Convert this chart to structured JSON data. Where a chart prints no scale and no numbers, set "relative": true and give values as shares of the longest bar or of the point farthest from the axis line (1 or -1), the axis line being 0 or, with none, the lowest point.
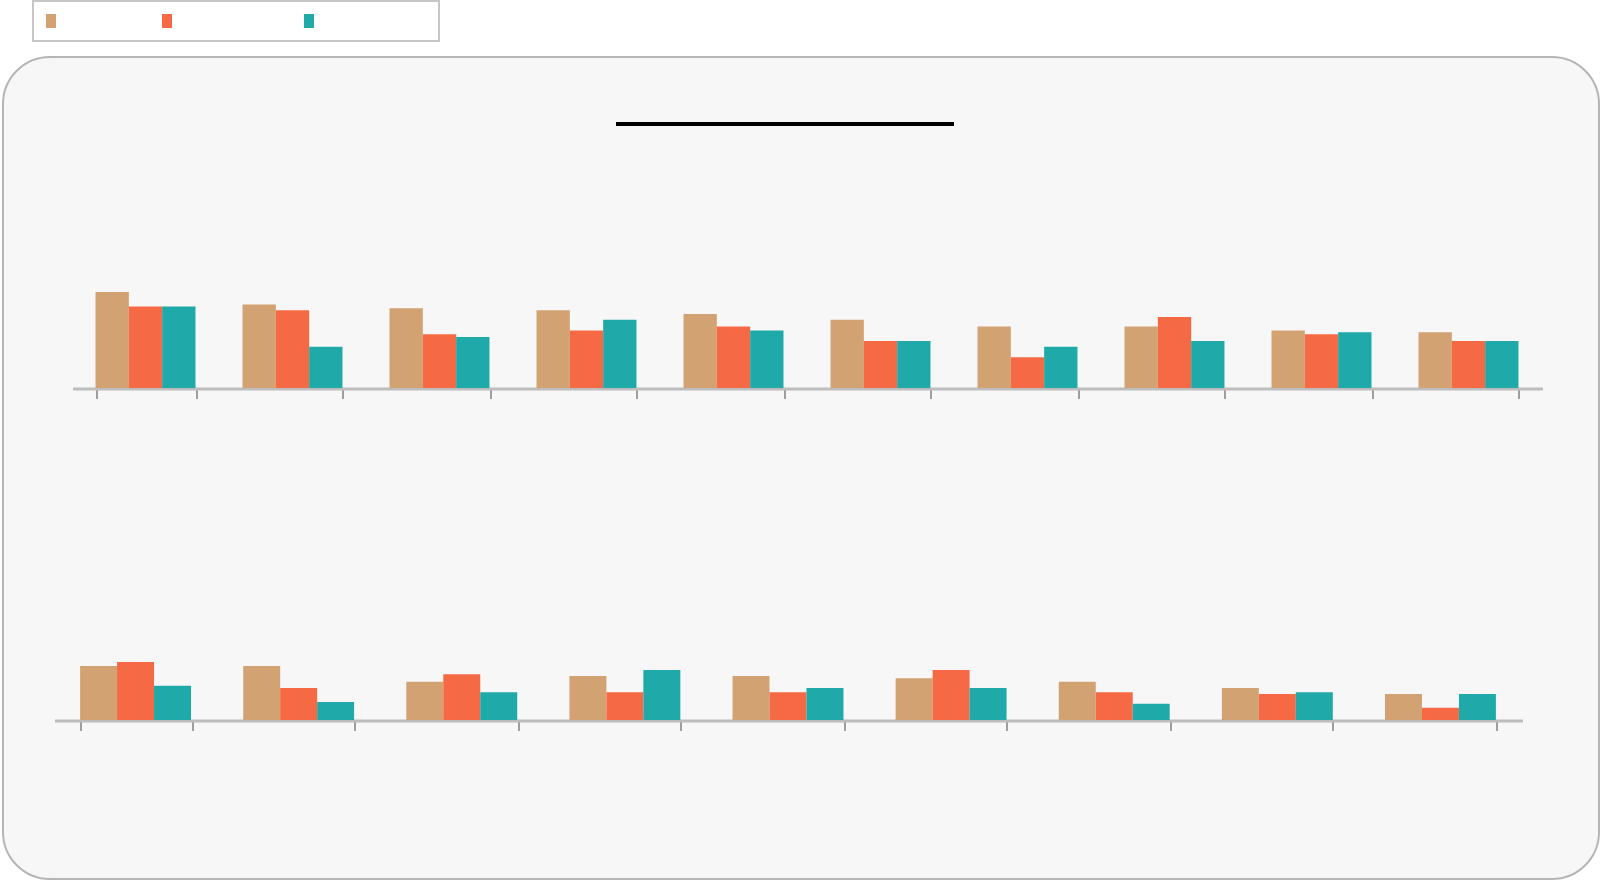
{
  "chart_data": [
    {
      "type": "bar",
      "relative": true,
      "categories": [
        null,
        null,
        null,
        null,
        null,
        null,
        null,
        null,
        null,
        null
      ],
      "series": [
        {
          "color": "#d2a272",
          "values": [
            1,
            0.87,
            0.83,
            0.81,
            0.77,
            0.71,
            0.64,
            0.64,
            0.6,
            0.58
          ]
        },
        {
          "color": "#f56a45",
          "values": [
            0.85,
            0.81,
            0.56,
            0.6,
            0.64,
            0.49,
            0.32,
            0.74,
            0.56,
            0.49
          ]
        },
        {
          "color": "#1fa9a9",
          "values": [
            0.85,
            0.43,
            0.53,
            0.71,
            0.6,
            0.49,
            0.43,
            0.49,
            0.58,
            0.49
          ]
        }
      ]
    },
    {
      "type": "bar",
      "relative": true,
      "categories": [
        null,
        null,
        null,
        null,
        null,
        null,
        null,
        null,
        null
      ],
      "series": [
        {
          "color": "#d2a272",
          "values": [
            0.93,
            0.93,
            0.66,
            0.76,
            0.76,
            0.72,
            0.66,
            0.55,
            0.45
          ]
        },
        {
          "color": "#f56a45",
          "values": [
            1,
            0.55,
            0.79,
            0.48,
            0.48,
            0.86,
            0.48,
            0.45,
            0.21
          ]
        },
        {
          "color": "#1fa9a9",
          "values": [
            0.59,
            0.31,
            0.48,
            0.86,
            0.55,
            0.55,
            0.28,
            0.48,
            0.45
          ]
        }
      ]
    }
  ]
}
